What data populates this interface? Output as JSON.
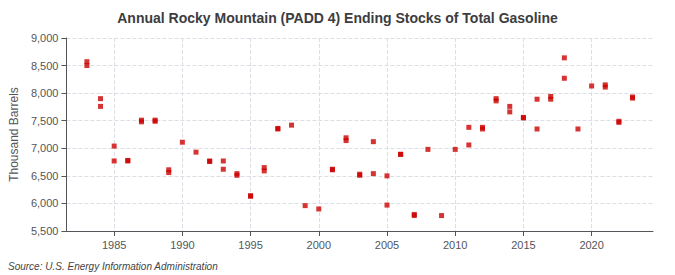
{
  "chart_data": {
    "type": "scatter",
    "title": "Annual Rocky Mountain (PADD 4) Ending Stocks of Total Gasoline",
    "ylabel": "Thousand Barrels",
    "source": "Source: U.S. Energy Information Administration",
    "x": [
      1983,
      1983,
      1984,
      1984,
      1985,
      1985,
      1986,
      1986,
      1987,
      1987,
      1988,
      1988,
      1989,
      1989,
      1990,
      1991,
      1992,
      1992,
      1993,
      1993,
      1994,
      1994,
      1995,
      1995,
      1996,
      1996,
      1997,
      1997,
      1998,
      1999,
      2000,
      2001,
      2001,
      2002,
      2002,
      2003,
      2003,
      2004,
      2004,
      2005,
      2005,
      2006,
      2006,
      2007,
      2007,
      2008,
      2009,
      2010,
      2011,
      2011,
      2012,
      2012,
      2013,
      2013,
      2014,
      2014,
      2015,
      2015,
      2016,
      2016,
      2017,
      2017,
      2018,
      2018,
      2019,
      2020,
      2021,
      2021,
      2022,
      2022,
      2023,
      2023
    ],
    "values": [
      8500,
      8570,
      7760,
      7900,
      6770,
      7040,
      6770,
      6780,
      7480,
      7510,
      7490,
      7510,
      6610,
      6560,
      7110,
      6930,
      6760,
      6770,
      6770,
      6620,
      6510,
      6540,
      6130,
      6140,
      6590,
      6650,
      7360,
      7350,
      7420,
      5960,
      5900,
      6610,
      6620,
      7140,
      7190,
      6530,
      6510,
      6540,
      7120,
      6500,
      5970,
      6890,
      6890,
      5780,
      5800,
      6980,
      5780,
      6980,
      7380,
      7060,
      7350,
      7380,
      7860,
      7900,
      7660,
      7760,
      7550,
      7560,
      7350,
      7890,
      7890,
      7940,
      8270,
      8640,
      7350,
      8130,
      8110,
      8150,
      7470,
      7490,
      7910,
      7930
    ],
    "color": "#CC0000",
    "marker": "square",
    "xlim": [
      1981.5,
      2024.5
    ],
    "xticks": [
      1985,
      1990,
      1995,
      2000,
      2005,
      2010,
      2015,
      2020
    ],
    "ylim": [
      5500,
      9000
    ],
    "yticks": [
      {
        "value": 5500,
        "label": "5,500"
      },
      {
        "value": 6000,
        "label": "6,000"
      },
      {
        "value": 6500,
        "label": "6,500"
      },
      {
        "value": 7000,
        "label": "7,000"
      },
      {
        "value": 7500,
        "label": "7,500"
      },
      {
        "value": 8000,
        "label": "8,000"
      },
      {
        "value": 8500,
        "label": "8,500"
      },
      {
        "value": 9000,
        "label": "9,000"
      }
    ],
    "grid": true
  }
}
